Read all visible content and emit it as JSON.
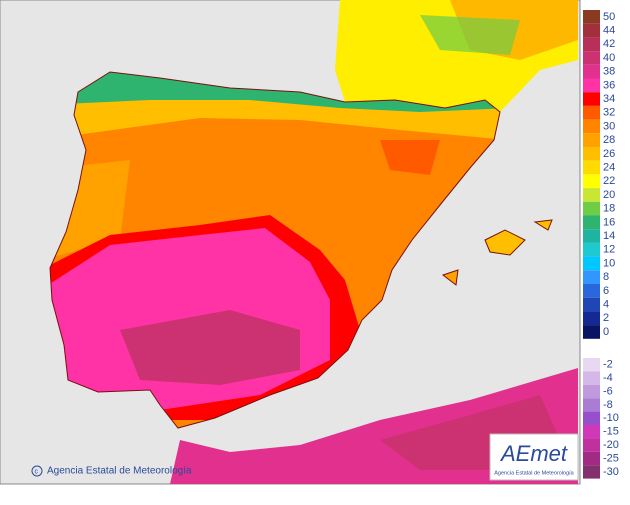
{
  "footer": {
    "credit": "Agencia Estatal de Meteorología"
  },
  "logo": {
    "mark": "AEmet",
    "caption": "Agencia Estatal de Meteorología"
  },
  "legend": {
    "positive": [
      {
        "value": 50,
        "color": "#8b3a22"
      },
      {
        "value": 44,
        "color": "#a2303c"
      },
      {
        "value": 42,
        "color": "#b82f58"
      },
      {
        "value": 40,
        "color": "#cc3272"
      },
      {
        "value": 38,
        "color": "#e2308e"
      },
      {
        "value": 36,
        "color": "#ff33a6"
      },
      {
        "value": 34,
        "color": "#ff0000"
      },
      {
        "value": 32,
        "color": "#ff5a00"
      },
      {
        "value": 30,
        "color": "#ff8400"
      },
      {
        "value": 28,
        "color": "#ffa200"
      },
      {
        "value": 26,
        "color": "#ffbe00"
      },
      {
        "value": 24,
        "color": "#ffdc00"
      },
      {
        "value": 22,
        "color": "#ffff00"
      },
      {
        "value": 20,
        "color": "#c8e632"
      },
      {
        "value": 18,
        "color": "#6ecc46"
      },
      {
        "value": 16,
        "color": "#2eb46e"
      },
      {
        "value": 14,
        "color": "#1eb4a0"
      },
      {
        "value": 12,
        "color": "#1ecad0"
      },
      {
        "value": 10,
        "color": "#00c8ff"
      },
      {
        "value": 8,
        "color": "#3296ff"
      },
      {
        "value": 6,
        "color": "#2a66dc"
      },
      {
        "value": 4,
        "color": "#1e46b4"
      },
      {
        "value": 2,
        "color": "#142896"
      },
      {
        "value": 0,
        "color": "#0a1464"
      }
    ],
    "negative": [
      {
        "value": -2,
        "color": "#e8d8f2"
      },
      {
        "value": -4,
        "color": "#d4b8e8"
      },
      {
        "value": -6,
        "color": "#c09ade"
      },
      {
        "value": -8,
        "color": "#aa7cd4"
      },
      {
        "value": -10,
        "color": "#9650cc"
      },
      {
        "value": -15,
        "color": "#d038b8"
      },
      {
        "value": -20,
        "color": "#c0309e"
      },
      {
        "value": -25,
        "color": "#a22a84"
      },
      {
        "value": -30,
        "color": "#84306e"
      }
    ]
  }
}
